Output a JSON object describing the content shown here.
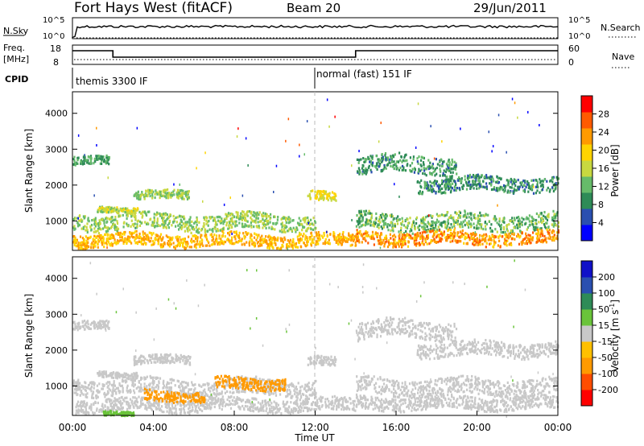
{
  "header": {
    "station": "Fort Hays West (fitACF)",
    "beam": "Beam 20",
    "date": "29/Jun/2011"
  },
  "summary": {
    "nsky_label": "N.Sky",
    "nsky_ticks": [
      "10^5",
      "10^0"
    ],
    "nsearch_label": "N.Search",
    "nsearch_ticks": [
      "10^5",
      "10^0"
    ],
    "freq_label": "Freq.",
    "freq_unit": "[MHz]",
    "freq_ticks": [
      "18",
      "8"
    ],
    "nave_label": "Nave",
    "nave_ticks": [
      "60",
      "0"
    ],
    "cpid_label": "CPID",
    "cpid_segments": [
      {
        "label": "themis 3300 IF",
        "start_hour": 0
      },
      {
        "label": "normal (fast) 151 IF",
        "start_hour": 12
      }
    ],
    "freq_steps": [
      {
        "start_hour": 0,
        "end_hour": 2,
        "level": "high"
      },
      {
        "start_hour": 2,
        "end_hour": 14,
        "level": "low"
      },
      {
        "start_hour": 14,
        "end_hour": 24,
        "level": "high"
      }
    ]
  },
  "chart_data": [
    {
      "type": "heatmap",
      "name": "Power",
      "ylabel": "Slant Range [km]",
      "ylim": [
        180,
        4600
      ],
      "yticks": [
        "4000",
        "3000",
        "2000",
        "1000"
      ],
      "colorbar_title": "Power [dB]",
      "colorbar_ticks": [
        "28",
        "24",
        "20",
        "16",
        "12",
        "8",
        "4"
      ],
      "colorbar_colors": [
        "#0000ff",
        "#2a4fb0",
        "#2e8b57",
        "#66bb6a",
        "#c8d840",
        "#ffd400",
        "#ff9a00",
        "#ff5a00",
        "#ff0000"
      ],
      "bands": [
        {
          "x0": 0.0,
          "x1": 1.8,
          "y": 2700,
          "spread": 120,
          "value": 10
        },
        {
          "x0": 1.2,
          "x1": 3.2,
          "y": 1350,
          "spread": 80,
          "value": 16
        },
        {
          "x0": 3.0,
          "x1": 5.8,
          "y": 1750,
          "spread": 120,
          "value": 14
        },
        {
          "x0": 0.0,
          "x1": 12.0,
          "y": 1000,
          "spread": 220,
          "value": 14
        },
        {
          "x0": 0.0,
          "x1": 14.0,
          "y": 500,
          "spread": 180,
          "value": 22
        },
        {
          "x0": 11.6,
          "x1": 13.0,
          "y": 1700,
          "spread": 130,
          "value": 18
        },
        {
          "x0": 14.0,
          "x1": 19.0,
          "y": 2600,
          "spread": 250,
          "value": 9
        },
        {
          "x0": 17.0,
          "x1": 24.0,
          "y": 2050,
          "spread": 200,
          "value": 8
        },
        {
          "x0": 14.0,
          "x1": 24.0,
          "y": 1000,
          "spread": 230,
          "value": 12
        },
        {
          "x0": 14.0,
          "x1": 24.0,
          "y": 550,
          "spread": 180,
          "value": 24
        }
      ]
    },
    {
      "type": "heatmap",
      "name": "Velocity",
      "xlabel": "Time UT",
      "ylabel": "Slant Range [km]",
      "ylim": [
        180,
        4600
      ],
      "xlim": [
        0,
        24
      ],
      "yticks": [
        "4000",
        "3000",
        "2000",
        "1000"
      ],
      "xticks": [
        "00:00",
        "04:00",
        "08:00",
        "12:00",
        "16:00",
        "20:00",
        "00:00"
      ],
      "colorbar_title": "Velocity [m s",
      "colorbar_title_sup": "-1",
      "colorbar_title_end": "]",
      "colorbar_ticks": [
        "200",
        "100",
        "50",
        "15",
        "-15",
        "-50",
        "-100",
        "-200"
      ],
      "colorbar_colors": [
        "#ff0000",
        "#ff4d00",
        "#ff9a00",
        "#ffc000",
        "#c8c8c8",
        "#6ac43a",
        "#2e8b57",
        "#2a4fb0",
        "#1010c8"
      ],
      "bands": [
        {
          "x0": 0.0,
          "x1": 1.8,
          "y": 2700,
          "spread": 120,
          "value": 0
        },
        {
          "x0": 1.2,
          "x1": 3.2,
          "y": 1350,
          "spread": 80,
          "value": 0
        },
        {
          "x0": 3.0,
          "x1": 5.8,
          "y": 1750,
          "spread": 120,
          "value": 0
        },
        {
          "x0": 0.0,
          "x1": 12.0,
          "y": 1000,
          "spread": 220,
          "value": 0
        },
        {
          "x0": 0.0,
          "x1": 14.0,
          "y": 500,
          "spread": 180,
          "value": 0
        },
        {
          "x0": 11.6,
          "x1": 13.0,
          "y": 1700,
          "spread": 130,
          "value": 0
        },
        {
          "x0": 14.0,
          "x1": 19.0,
          "y": 2600,
          "spread": 250,
          "value": 0
        },
        {
          "x0": 17.0,
          "x1": 24.0,
          "y": 2050,
          "spread": 200,
          "value": 0
        },
        {
          "x0": 14.0,
          "x1": 24.0,
          "y": 1000,
          "spread": 230,
          "value": 0
        },
        {
          "x0": 14.0,
          "x1": 24.0,
          "y": 550,
          "spread": 180,
          "value": 0
        },
        {
          "x0": 3.5,
          "x1": 6.5,
          "y": 750,
          "spread": 150,
          "value": -45
        },
        {
          "x0": 7.0,
          "x1": 10.5,
          "y": 1100,
          "spread": 160,
          "value": -60
        },
        {
          "x0": 1.5,
          "x1": 3.0,
          "y": 250,
          "spread": 60,
          "value": 30
        }
      ]
    }
  ]
}
